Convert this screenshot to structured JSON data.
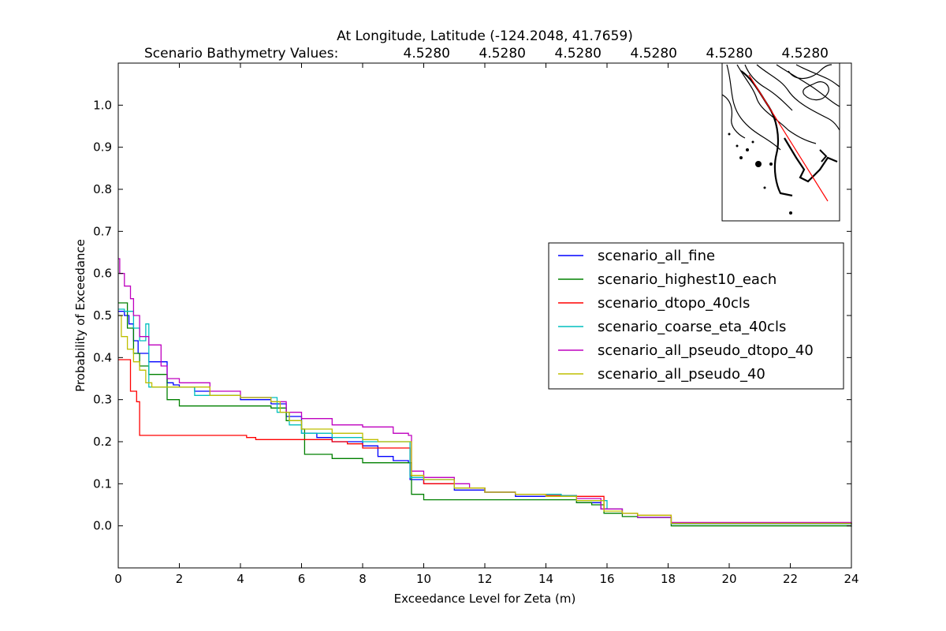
{
  "chart_data": {
    "type": "line",
    "title_line1": "At Longitude, Latitude (-124.2048,  41.7659)",
    "title_line2_label": "Scenario Bathymetry Values:",
    "bathymetry_values": [
      "4.5280",
      "4.5280",
      "4.5280",
      "4.5280",
      "4.5280",
      "4.5280"
    ],
    "xlabel": "Exceedance Level for Zeta (m)",
    "ylabel": "Probability of Exceedance",
    "xlim": [
      0,
      24
    ],
    "ylim": [
      -0.1,
      1.1
    ],
    "xticks": [
      0,
      2,
      4,
      6,
      8,
      10,
      12,
      14,
      16,
      18,
      20,
      22,
      24
    ],
    "yticks": [
      0.0,
      0.1,
      0.2,
      0.3,
      0.4,
      0.5,
      0.6,
      0.7,
      0.8,
      0.9,
      1.0
    ],
    "ytick_labels": [
      "0.0",
      "0.1",
      "0.2",
      "0.3",
      "0.4",
      "0.5",
      "0.6",
      "0.7",
      "0.8",
      "0.9",
      "1.0"
    ],
    "legend_position": "center-right",
    "grid": false,
    "series": [
      {
        "name": "scenario_all_fine",
        "color": "#0000ff",
        "x": [
          0,
          0.2,
          0.35,
          0.5,
          0.65,
          1.0,
          1.6,
          1.8,
          2.0,
          2.5,
          3.0,
          4.0,
          5.0,
          5.5,
          6.0,
          6.5,
          7.0,
          8.0,
          8.5,
          9.0,
          9.5,
          9.55,
          10.0,
          11.0,
          12.0,
          13.0,
          14.0,
          15.0,
          15.8,
          16.5,
          17.0,
          18.0,
          18.1,
          24.0
        ],
        "y": [
          0.51,
          0.5,
          0.48,
          0.44,
          0.41,
          0.39,
          0.34,
          0.335,
          0.33,
          0.32,
          0.31,
          0.3,
          0.29,
          0.26,
          0.22,
          0.21,
          0.2,
          0.19,
          0.165,
          0.155,
          0.15,
          0.11,
          0.1,
          0.085,
          0.08,
          0.07,
          0.07,
          0.055,
          0.04,
          0.03,
          0.02,
          0.02,
          0.005,
          0.003
        ]
      },
      {
        "name": "scenario_highest10_each",
        "color": "#008000",
        "x": [
          0,
          0.3,
          0.5,
          0.7,
          1.0,
          1.6,
          2.0,
          4.0,
          5.0,
          5.5,
          6.0,
          6.1,
          7.0,
          8.0,
          9.5,
          9.6,
          10.0,
          11.0,
          12.0,
          14.0,
          15.0,
          15.5,
          15.9,
          16.5,
          17.0,
          18.0,
          18.1,
          24.0
        ],
        "y": [
          0.53,
          0.47,
          0.41,
          0.38,
          0.36,
          0.3,
          0.285,
          0.285,
          0.28,
          0.25,
          0.23,
          0.17,
          0.16,
          0.15,
          0.15,
          0.075,
          0.062,
          0.062,
          0.062,
          0.062,
          0.055,
          0.05,
          0.03,
          0.022,
          0.02,
          0.02,
          0.0,
          -0.002
        ]
      },
      {
        "name": "scenario_dtopo_40cls",
        "color": "#ff0000",
        "x": [
          0,
          0.4,
          0.6,
          0.7,
          1.0,
          2.0,
          4.0,
          4.2,
          4.5,
          6.0,
          7.0,
          7.5,
          8.0,
          9.5,
          9.55,
          10.0,
          11.0,
          12.0,
          13.0,
          14.0,
          15.0,
          15.9,
          16.5,
          17.0,
          18.0,
          18.1,
          24.0
        ],
        "y": [
          0.395,
          0.32,
          0.295,
          0.215,
          0.215,
          0.215,
          0.215,
          0.21,
          0.205,
          0.205,
          0.2,
          0.195,
          0.185,
          0.185,
          0.12,
          0.1,
          0.09,
          0.08,
          0.075,
          0.072,
          0.07,
          0.04,
          0.03,
          0.025,
          0.025,
          0.005,
          0.004
        ]
      },
      {
        "name": "scenario_coarse_eta_40cls",
        "color": "#00bfbf",
        "x": [
          0,
          0.2,
          0.5,
          0.7,
          0.9,
          1.0,
          2.0,
          2.5,
          4.0,
          5.0,
          5.2,
          5.6,
          6.0,
          7.0,
          8.0,
          9.5,
          9.55,
          10.0,
          11.0,
          12.0,
          13.0,
          14.5,
          15.0,
          16.0,
          16.5,
          17.0,
          18.0,
          18.1,
          24.0
        ],
        "y": [
          0.515,
          0.51,
          0.47,
          0.44,
          0.48,
          0.33,
          0.33,
          0.31,
          0.305,
          0.305,
          0.27,
          0.24,
          0.22,
          0.21,
          0.2,
          0.2,
          0.115,
          0.11,
          0.09,
          0.08,
          0.075,
          0.072,
          0.06,
          0.04,
          0.03,
          0.02,
          0.02,
          0.005,
          0.004
        ]
      },
      {
        "name": "scenario_all_pseudo_dtopo_40",
        "color": "#bf00bf",
        "x": [
          0,
          0.05,
          0.2,
          0.4,
          0.5,
          0.7,
          1.0,
          1.4,
          1.6,
          2.0,
          3.0,
          4.0,
          5.0,
          5.5,
          6.0,
          7.0,
          8.0,
          9.0,
          9.5,
          9.6,
          10.0,
          11.0,
          11.5,
          12.0,
          13.0,
          14.0,
          15.0,
          15.8,
          16.5,
          17.0,
          18.0,
          18.1,
          24.0
        ],
        "y": [
          0.635,
          0.6,
          0.57,
          0.54,
          0.5,
          0.45,
          0.43,
          0.38,
          0.35,
          0.34,
          0.32,
          0.305,
          0.295,
          0.27,
          0.255,
          0.24,
          0.235,
          0.22,
          0.215,
          0.13,
          0.115,
          0.1,
          0.09,
          0.08,
          0.075,
          0.07,
          0.065,
          0.04,
          0.03,
          0.02,
          0.02,
          0.008,
          0.005
        ]
      },
      {
        "name": "scenario_all_pseudo_40",
        "color": "#bfbf00",
        "x": [
          0,
          0.1,
          0.3,
          0.5,
          0.7,
          0.9,
          1.1,
          2.0,
          3.0,
          4.0,
          5.0,
          5.3,
          5.6,
          6.0,
          7.0,
          8.0,
          8.5,
          9.5,
          9.6,
          10.0,
          11.0,
          12.0,
          13.0,
          14.0,
          15.0,
          15.9,
          16.5,
          17.0,
          18.0,
          18.1,
          24.0
        ],
        "y": [
          0.5,
          0.45,
          0.42,
          0.39,
          0.37,
          0.34,
          0.33,
          0.33,
          0.31,
          0.305,
          0.295,
          0.27,
          0.25,
          0.23,
          0.22,
          0.205,
          0.2,
          0.2,
          0.12,
          0.11,
          0.09,
          0.08,
          0.075,
          0.07,
          0.06,
          0.035,
          0.03,
          0.025,
          0.025,
          0.006,
          0.004
        ]
      }
    ]
  }
}
